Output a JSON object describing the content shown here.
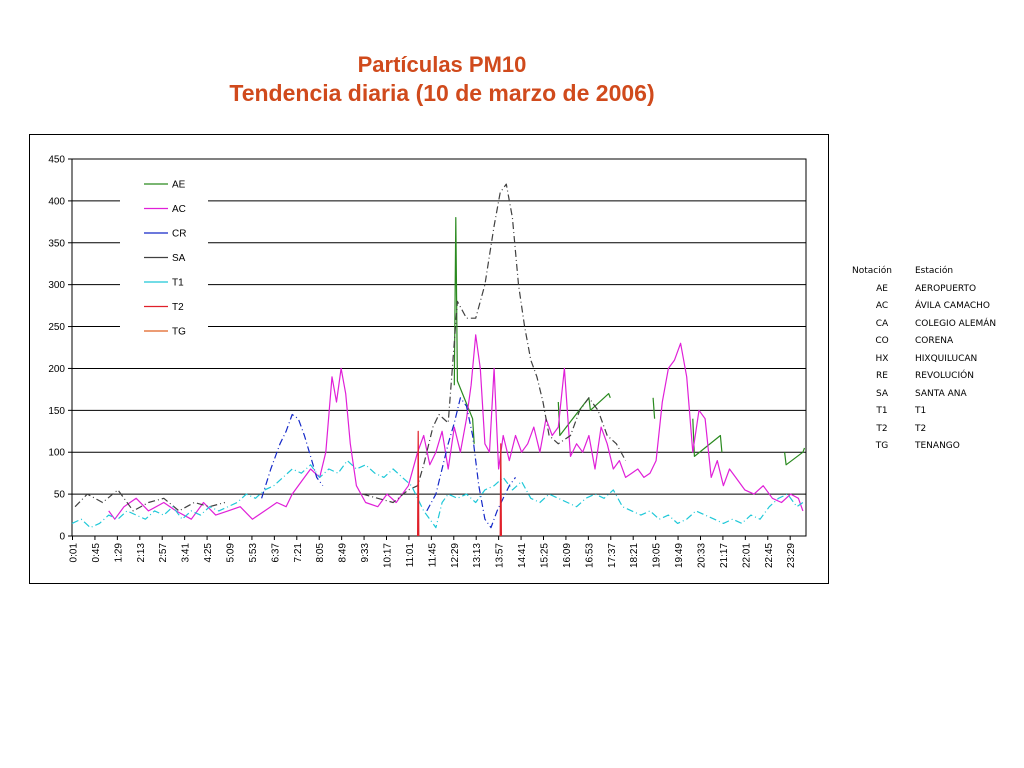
{
  "title": {
    "line1": "Partículas PM10",
    "line2": "Tendencia diaria (10 de marzo de 2006)"
  },
  "chart_data": {
    "type": "line",
    "title": "Partículas PM10 Tendencia diaria (10 de marzo de 2006)",
    "xlabel": "",
    "ylabel": "",
    "ylim": [
      0,
      450
    ],
    "yticks": [
      0,
      50,
      100,
      150,
      200,
      250,
      300,
      350,
      400,
      450
    ],
    "xticks": [
      "0:01",
      "0:45",
      "1:29",
      "2:13",
      "2:57",
      "3:41",
      "4:25",
      "5:09",
      "5:53",
      "6:37",
      "7:21",
      "8:05",
      "8:49",
      "9:33",
      "10:17",
      "11:01",
      "11:45",
      "12:29",
      "13:13",
      "13:57",
      "14:41",
      "15:25",
      "16:09",
      "16:53",
      "17:37",
      "18:21",
      "19:05",
      "19:49",
      "20:33",
      "21:17",
      "22:01",
      "22:45",
      "23:29"
    ],
    "xunit": "hours",
    "grid": true,
    "legend_position": "top-left",
    "series": [
      {
        "name": "AE",
        "color": "#2a8a1f",
        "dash": "solid",
        "points": [
          [
            12.5,
            180
          ],
          [
            12.55,
            380
          ],
          [
            12.6,
            185
          ],
          [
            13.1,
            140
          ],
          [
            13.15,
            110
          ],
          [
            15.9,
            160
          ],
          [
            15.95,
            120
          ],
          [
            16.9,
            165
          ],
          [
            16.95,
            150
          ],
          [
            17.55,
            170
          ],
          [
            17.6,
            165
          ],
          [
            19.0,
            165
          ],
          [
            19.05,
            140
          ],
          [
            20.3,
            140
          ],
          [
            20.35,
            95
          ],
          [
            21.2,
            120
          ],
          [
            21.25,
            100
          ],
          [
            23.3,
            100
          ],
          [
            23.35,
            85
          ],
          [
            23.9,
            100
          ],
          [
            23.95,
            105
          ]
        ]
      },
      {
        "name": "AC",
        "color": "#e020d8",
        "dash": "solid",
        "points": [
          [
            1.2,
            30
          ],
          [
            1.4,
            20
          ],
          [
            1.7,
            35
          ],
          [
            2.1,
            45
          ],
          [
            2.5,
            30
          ],
          [
            3.0,
            40
          ],
          [
            3.4,
            30
          ],
          [
            3.9,
            20
          ],
          [
            4.3,
            40
          ],
          [
            4.7,
            25
          ],
          [
            5.1,
            30
          ],
          [
            5.5,
            35
          ],
          [
            5.9,
            20
          ],
          [
            6.3,
            30
          ],
          [
            6.7,
            40
          ],
          [
            7.0,
            35
          ],
          [
            7.2,
            50
          ],
          [
            7.5,
            65
          ],
          [
            7.8,
            80
          ],
          [
            8.1,
            70
          ],
          [
            8.3,
            100
          ],
          [
            8.5,
            190
          ],
          [
            8.65,
            160
          ],
          [
            8.8,
            200
          ],
          [
            8.95,
            170
          ],
          [
            9.1,
            110
          ],
          [
            9.3,
            60
          ],
          [
            9.6,
            40
          ],
          [
            10.0,
            35
          ],
          [
            10.3,
            50
          ],
          [
            10.6,
            40
          ],
          [
            11.0,
            60
          ],
          [
            11.3,
            100
          ],
          [
            11.5,
            120
          ],
          [
            11.7,
            85
          ],
          [
            11.9,
            100
          ],
          [
            12.1,
            125
          ],
          [
            12.3,
            80
          ],
          [
            12.5,
            130
          ],
          [
            12.7,
            100
          ],
          [
            12.9,
            140
          ],
          [
            13.05,
            180
          ],
          [
            13.2,
            240
          ],
          [
            13.35,
            200
          ],
          [
            13.5,
            110
          ],
          [
            13.65,
            100
          ],
          [
            13.8,
            200
          ],
          [
            13.95,
            80
          ],
          [
            14.1,
            120
          ],
          [
            14.3,
            90
          ],
          [
            14.5,
            120
          ],
          [
            14.7,
            100
          ],
          [
            14.9,
            110
          ],
          [
            15.1,
            130
          ],
          [
            15.3,
            100
          ],
          [
            15.5,
            140
          ],
          [
            15.7,
            120
          ],
          [
            15.9,
            130
          ],
          [
            16.1,
            200
          ],
          [
            16.3,
            95
          ],
          [
            16.5,
            110
          ],
          [
            16.7,
            100
          ],
          [
            16.9,
            120
          ],
          [
            17.1,
            80
          ],
          [
            17.3,
            130
          ],
          [
            17.5,
            110
          ],
          [
            17.7,
            80
          ],
          [
            17.9,
            90
          ],
          [
            18.1,
            70
          ],
          [
            18.3,
            75
          ],
          [
            18.5,
            80
          ],
          [
            18.7,
            70
          ],
          [
            18.9,
            75
          ],
          [
            19.1,
            90
          ],
          [
            19.3,
            160
          ],
          [
            19.5,
            200
          ],
          [
            19.7,
            210
          ],
          [
            19.9,
            230
          ],
          [
            20.1,
            190
          ],
          [
            20.3,
            100
          ],
          [
            20.5,
            150
          ],
          [
            20.7,
            140
          ],
          [
            20.9,
            70
          ],
          [
            21.1,
            90
          ],
          [
            21.3,
            60
          ],
          [
            21.5,
            80
          ],
          [
            21.7,
            70
          ],
          [
            22.0,
            55
          ],
          [
            22.3,
            50
          ],
          [
            22.6,
            60
          ],
          [
            22.9,
            45
          ],
          [
            23.2,
            40
          ],
          [
            23.5,
            50
          ],
          [
            23.75,
            45
          ],
          [
            23.9,
            30
          ]
        ]
      },
      {
        "name": "CR",
        "color": "#1428c8",
        "dash": "dashdot",
        "points": [
          [
            6.2,
            45
          ],
          [
            6.5,
            80
          ],
          [
            6.8,
            110
          ],
          [
            7.0,
            125
          ],
          [
            7.2,
            145
          ],
          [
            7.4,
            140
          ],
          [
            7.6,
            120
          ],
          [
            7.8,
            95
          ],
          [
            8.0,
            70
          ],
          [
            8.2,
            60
          ],
          [
            11.6,
            30
          ],
          [
            11.9,
            50
          ],
          [
            12.3,
            110
          ],
          [
            12.5,
            135
          ],
          [
            12.7,
            165
          ],
          [
            12.9,
            155
          ],
          [
            13.1,
            120
          ],
          [
            13.3,
            60
          ],
          [
            13.5,
            20
          ],
          [
            13.7,
            10
          ],
          [
            13.9,
            30
          ],
          [
            14.1,
            45
          ],
          [
            14.3,
            60
          ],
          [
            14.5,
            70
          ]
        ]
      },
      {
        "name": "SA",
        "color": "#404040",
        "dash": "dashdot",
        "points": [
          [
            0.1,
            35
          ],
          [
            0.5,
            50
          ],
          [
            1.0,
            40
          ],
          [
            1.5,
            55
          ],
          [
            2.0,
            30
          ],
          [
            2.5,
            40
          ],
          [
            3.0,
            45
          ],
          [
            3.5,
            30
          ],
          [
            4.0,
            40
          ],
          [
            4.5,
            35
          ],
          [
            5.0,
            40
          ],
          [
            9.5,
            50
          ],
          [
            10.0,
            45
          ],
          [
            10.5,
            40
          ],
          [
            11.0,
            55
          ],
          [
            11.3,
            60
          ],
          [
            11.5,
            85
          ],
          [
            11.8,
            130
          ],
          [
            12.0,
            145
          ],
          [
            12.3,
            135
          ],
          [
            12.6,
            280
          ],
          [
            12.9,
            260
          ],
          [
            13.2,
            260
          ],
          [
            13.5,
            300
          ],
          [
            13.8,
            370
          ],
          [
            14.0,
            410
          ],
          [
            14.2,
            420
          ],
          [
            14.4,
            380
          ],
          [
            14.6,
            300
          ],
          [
            14.8,
            250
          ],
          [
            15.0,
            210
          ],
          [
            15.2,
            190
          ],
          [
            15.4,
            160
          ],
          [
            15.6,
            120
          ],
          [
            15.9,
            110
          ],
          [
            16.3,
            120
          ],
          [
            16.6,
            150
          ],
          [
            16.9,
            165
          ],
          [
            17.2,
            150
          ],
          [
            17.5,
            120
          ],
          [
            17.8,
            110
          ],
          [
            18.1,
            90
          ]
        ]
      },
      {
        "name": "T1",
        "color": "#1fc8d8",
        "dash": "dashdot",
        "points": [
          [
            0.0,
            15
          ],
          [
            0.3,
            20
          ],
          [
            0.6,
            10
          ],
          [
            0.9,
            15
          ],
          [
            1.2,
            25
          ],
          [
            1.5,
            20
          ],
          [
            1.8,
            30
          ],
          [
            2.1,
            25
          ],
          [
            2.4,
            20
          ],
          [
            2.7,
            30
          ],
          [
            3.0,
            25
          ],
          [
            3.3,
            35
          ],
          [
            3.6,
            20
          ],
          [
            3.9,
            30
          ],
          [
            4.2,
            25
          ],
          [
            4.5,
            35
          ],
          [
            4.8,
            30
          ],
          [
            5.1,
            35
          ],
          [
            5.4,
            40
          ],
          [
            5.7,
            50
          ],
          [
            6.0,
            45
          ],
          [
            6.3,
            55
          ],
          [
            6.6,
            60
          ],
          [
            6.9,
            70
          ],
          [
            7.2,
            80
          ],
          [
            7.5,
            75
          ],
          [
            7.8,
            85
          ],
          [
            8.1,
            70
          ],
          [
            8.4,
            80
          ],
          [
            8.7,
            75
          ],
          [
            9.0,
            90
          ],
          [
            9.3,
            80
          ],
          [
            9.6,
            85
          ],
          [
            9.9,
            75
          ],
          [
            10.2,
            70
          ],
          [
            10.5,
            80
          ],
          [
            10.8,
            70
          ],
          [
            11.1,
            60
          ],
          [
            11.3,
            45
          ],
          [
            11.5,
            30
          ],
          [
            11.7,
            20
          ],
          [
            11.9,
            10
          ],
          [
            12.1,
            40
          ],
          [
            12.3,
            50
          ],
          [
            12.6,
            45
          ],
          [
            12.9,
            50
          ],
          [
            13.2,
            40
          ],
          [
            13.5,
            55
          ],
          [
            13.8,
            60
          ],
          [
            14.1,
            70
          ],
          [
            14.4,
            55
          ],
          [
            14.7,
            65
          ],
          [
            15.0,
            45
          ],
          [
            15.3,
            40
          ],
          [
            15.6,
            50
          ],
          [
            15.9,
            45
          ],
          [
            16.2,
            40
          ],
          [
            16.5,
            35
          ],
          [
            16.8,
            45
          ],
          [
            17.1,
            50
          ],
          [
            17.4,
            45
          ],
          [
            17.7,
            55
          ],
          [
            18.0,
            35
          ],
          [
            18.3,
            30
          ],
          [
            18.6,
            25
          ],
          [
            18.9,
            30
          ],
          [
            19.2,
            20
          ],
          [
            19.5,
            25
          ],
          [
            19.8,
            15
          ],
          [
            20.1,
            20
          ],
          [
            20.4,
            30
          ],
          [
            20.7,
            25
          ],
          [
            21.0,
            20
          ],
          [
            21.3,
            15
          ],
          [
            21.6,
            20
          ],
          [
            21.9,
            15
          ],
          [
            22.2,
            25
          ],
          [
            22.5,
            20
          ],
          [
            22.8,
            35
          ],
          [
            23.1,
            45
          ],
          [
            23.4,
            50
          ],
          [
            23.7,
            35
          ],
          [
            23.9,
            40
          ]
        ]
      },
      {
        "name": "T2",
        "color": "#e0202a",
        "dash": "solid",
        "points": [
          [
            11.3,
            0
          ],
          [
            11.32,
            125
          ],
          [
            11.34,
            0
          ],
          [
            14.0,
            0
          ],
          [
            14.02,
            110
          ],
          [
            14.04,
            0
          ]
        ]
      },
      {
        "name": "TG",
        "color": "#e06020",
        "dash": "solid",
        "points": []
      }
    ]
  },
  "station_table": {
    "headers": [
      "Notación",
      "Estación"
    ],
    "rows": [
      [
        "AE",
        "AEROPUERTO"
      ],
      [
        "AC",
        "ÁVILA CAMACHO"
      ],
      [
        "CA",
        "COLEGIO ALEMÁN"
      ],
      [
        "CO",
        "CORENA"
      ],
      [
        "HX",
        "HIXQUILUCAN"
      ],
      [
        "RE",
        "REVOLUCIÓN"
      ],
      [
        "SA",
        "SANTA ANA"
      ],
      [
        "T1",
        "T1"
      ],
      [
        "T2",
        "T2"
      ],
      [
        "TG",
        "TENANGO"
      ]
    ]
  }
}
